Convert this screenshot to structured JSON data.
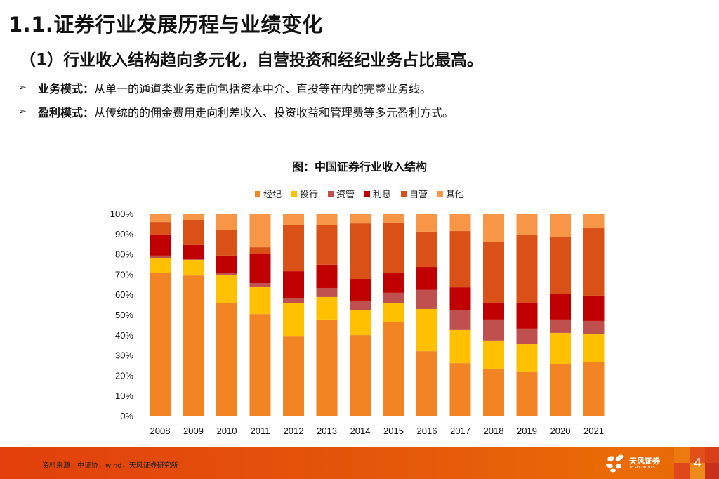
{
  "header": {
    "title": "1.1.证券行业发展历程与业绩变化",
    "subtitle": "（1）行业收入结构趋向多元化，自营投资和经纪业务占比最高。"
  },
  "bullets": [
    {
      "icon": "arrow-bullet-icon",
      "key": "业务模式：",
      "text": "从单一的通道类业务走向包括资本中介、直投等在内的完整业务线。"
    },
    {
      "icon": "arrow-bullet-icon",
      "key": "盈利模式：",
      "text": "从传统的的佣金费用走向利差收入、投资收益和管理费等多元盈利方式。"
    }
  ],
  "chart_data": {
    "type": "bar",
    "stacked": true,
    "percent_stacked": true,
    "title": "图：中国证券行业收入结构",
    "xlabel": "",
    "ylabel": "",
    "ylim": [
      0,
      100
    ],
    "y_ticks": [
      "0%",
      "10%",
      "20%",
      "30%",
      "40%",
      "50%",
      "60%",
      "70%",
      "80%",
      "90%",
      "100%"
    ],
    "grid": false,
    "legend_position": "top",
    "categories": [
      "2008",
      "2009",
      "2010",
      "2011",
      "2012",
      "2013",
      "2014",
      "2015",
      "2016",
      "2017",
      "2018",
      "2019",
      "2020",
      "2021"
    ],
    "series": [
      {
        "name": "经纪",
        "color": "#f28424",
        "values": [
          70.5,
          69.4,
          55.6,
          50.3,
          39.2,
          47.6,
          39.9,
          46.5,
          31.9,
          26.0,
          23.3,
          21.9,
          25.7,
          26.4
        ]
      },
      {
        "name": "投行",
        "color": "#ffc000",
        "values": [
          7.6,
          7.7,
          14.2,
          13.6,
          16.7,
          11.1,
          12.2,
          9.4,
          20.9,
          16.4,
          13.9,
          13.5,
          15.3,
          14.2
        ]
      },
      {
        "name": "资管",
        "color": "#c0504d",
        "values": [
          1.1,
          0.3,
          1.0,
          1.7,
          2.1,
          4.5,
          4.8,
          4.9,
          9.4,
          10.0,
          10.4,
          7.7,
          6.6,
          6.3
        ]
      },
      {
        "name": "利息",
        "color": "#c00000",
        "values": [
          10.4,
          7.0,
          8.4,
          14.3,
          13.5,
          11.5,
          10.8,
          10.0,
          11.4,
          11.1,
          8.0,
          12.5,
          12.8,
          12.5
        ]
      },
      {
        "name": "自营",
        "color": "#d95117",
        "values": [
          6.2,
          12.5,
          12.5,
          3.4,
          22.6,
          19.4,
          27.4,
          24.7,
          17.4,
          27.8,
          30.2,
          34.0,
          27.8,
          33.3
        ]
      },
      {
        "name": "其他",
        "color": "#f79646",
        "values": [
          4.2,
          3.1,
          8.3,
          16.7,
          5.9,
          5.9,
          4.9,
          4.5,
          9.0,
          8.7,
          14.2,
          10.4,
          11.8,
          7.3
        ]
      }
    ]
  },
  "footer": {
    "source": "资料来源：中证协，wind，天风证券研究所",
    "logo_cn": "天风证券",
    "logo_en": "TF SECURITIES",
    "page_number": "4"
  }
}
